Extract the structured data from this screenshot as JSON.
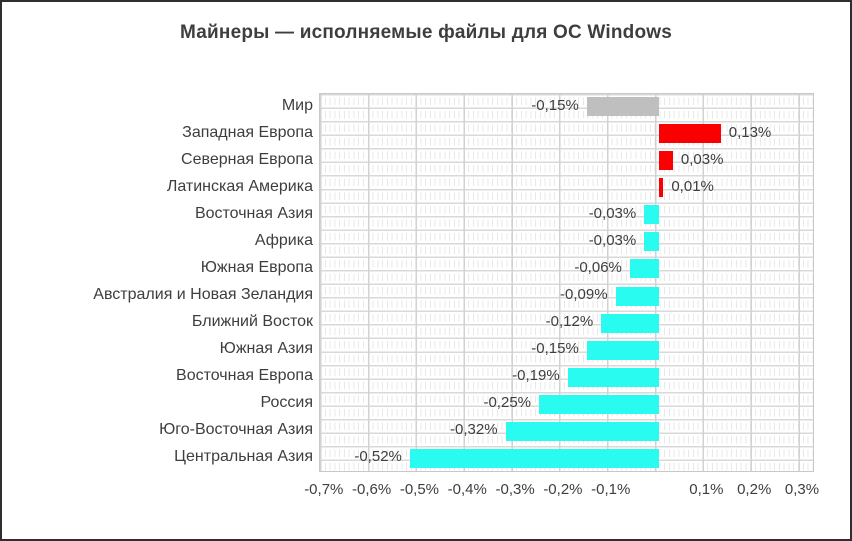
{
  "title": "Майнеры — исполняемые файлы для ОС Windows",
  "chart_data": {
    "type": "bar",
    "orientation": "horizontal",
    "title": "Майнеры — исполняемые файлы для ОС Windows",
    "categories": [
      "Мир",
      "Западная Европа",
      "Северная Европа",
      "Латинская Америка",
      "Восточная Азия",
      "Африка",
      "Южная Европа",
      "Австралия и Новая Зеландия",
      "Ближний Восток",
      "Южная Азия",
      "Восточная Европа",
      "Россия",
      "Юго-Восточная Азия",
      "Центральная Азия"
    ],
    "values": [
      -0.15,
      0.13,
      0.03,
      0.01,
      -0.03,
      -0.03,
      -0.06,
      -0.09,
      -0.12,
      -0.15,
      -0.19,
      -0.25,
      -0.32,
      -0.52
    ],
    "value_labels": [
      "-0,15%",
      "0,13%",
      "0,03%",
      "0,01%",
      "-0,03%",
      "-0,03%",
      "-0,06%",
      "-0,09%",
      "-0,12%",
      "-0,15%",
      "-0,19%",
      "-0,25%",
      "-0,32%",
      "-0,52%"
    ],
    "bar_colors": [
      "#bfbfbf",
      "#fb0000",
      "#fb0000",
      "#fb0000",
      "#2afbf1",
      "#2afbf1",
      "#2afbf1",
      "#2afbf1",
      "#2afbf1",
      "#2afbf1",
      "#2afbf1",
      "#2afbf1",
      "#2afbf1",
      "#2afbf1"
    ],
    "color_legend": {
      "world": "#bfbfbf",
      "increase": "#fb0000",
      "decrease": "#2afbf1"
    },
    "x_ticks": [
      {
        "value": -0.7,
        "label": "-0,7%"
      },
      {
        "value": -0.6,
        "label": "-0,6%"
      },
      {
        "value": -0.5,
        "label": "-0,5%"
      },
      {
        "value": -0.4,
        "label": "-0,4%"
      },
      {
        "value": -0.3,
        "label": "-0,3%"
      },
      {
        "value": -0.2,
        "label": "-0,2%"
      },
      {
        "value": -0.1,
        "label": "-0,1%"
      },
      {
        "value": 0.1,
        "label": "0,1%"
      },
      {
        "value": 0.2,
        "label": "0,2%"
      },
      {
        "value": 0.3,
        "label": "0,3%"
      }
    ],
    "xlim": [
      -0.71,
      0.325
    ],
    "xlabel": "",
    "ylabel": "",
    "grid": true,
    "legend": false,
    "text_color": "#3e3e3e"
  }
}
